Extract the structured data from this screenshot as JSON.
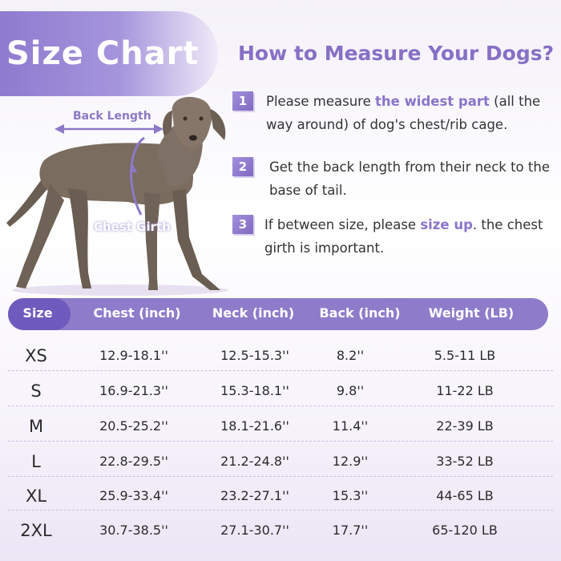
{
  "banner": {
    "title": "Size Chart"
  },
  "heading": "How to Measure Your Dogs?",
  "steps": [
    {
      "num": "1",
      "before": "Please measure ",
      "highlight": "the widest part",
      "after": " (all the way around) of dog's chest/rib cage."
    },
    {
      "num": "2",
      "before": "Get the back length from their neck to the base of tail.",
      "highlight": "",
      "after": ""
    },
    {
      "num": "3",
      "before": "If between size, please ",
      "highlight": "size up",
      "after": ". the chest girth is  important."
    }
  ],
  "diagram": {
    "back_label": "Back Length",
    "chest_label": "Chest Girth"
  },
  "colors": {
    "accent": "#8e7ccb",
    "accent_dark": "#6f5bbd",
    "highlight": "#8a74c9"
  },
  "table": {
    "headers": [
      "Size",
      "Chest (inch)",
      "Neck (inch)",
      "Back (inch)",
      "Weight (LB)"
    ],
    "rows": [
      [
        "XS",
        "12.9-18.1''",
        "12.5-15.3''",
        "8.2''",
        "5.5-11 LB"
      ],
      [
        "S",
        "16.9-21.3''",
        "15.3-18.1''",
        "9.8''",
        "11-22 LB"
      ],
      [
        "M",
        "20.5-25.2''",
        "18.1-21.6''",
        "11.4''",
        "22-39 LB"
      ],
      [
        "L",
        "22.8-29.5''",
        "21.2-24.8''",
        "12.9''",
        "33-52 LB"
      ],
      [
        "XL",
        "25.9-33.4''",
        "23.2-27.1''",
        "15.3''",
        "44-65 LB"
      ],
      [
        "2XL",
        "30.7-38.5''",
        "27.1-30.7''",
        "17.7''",
        "65-120 LB"
      ]
    ]
  }
}
